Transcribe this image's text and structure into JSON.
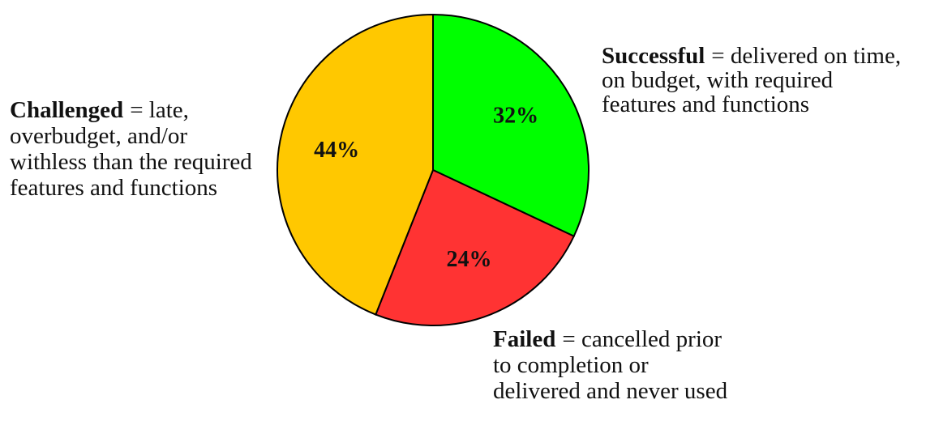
{
  "chart_data": {
    "type": "pie",
    "categories": [
      "Successful",
      "Failed",
      "Challenged"
    ],
    "values": [
      32,
      24,
      44
    ],
    "value_labels": [
      "32%",
      "24%",
      "44%"
    ],
    "colors": [
      "#00ff00",
      "#ff3333",
      "#ffc800"
    ],
    "descriptions": [
      [
        "= delivered on time,",
        "on budget, with required",
        "features and functions"
      ],
      [
        "= cancelled prior",
        "to completion or",
        "delivered and never used"
      ],
      [
        "= late,",
        "overbudget, and/or",
        "withless than the required",
        "features and functions"
      ]
    ]
  }
}
